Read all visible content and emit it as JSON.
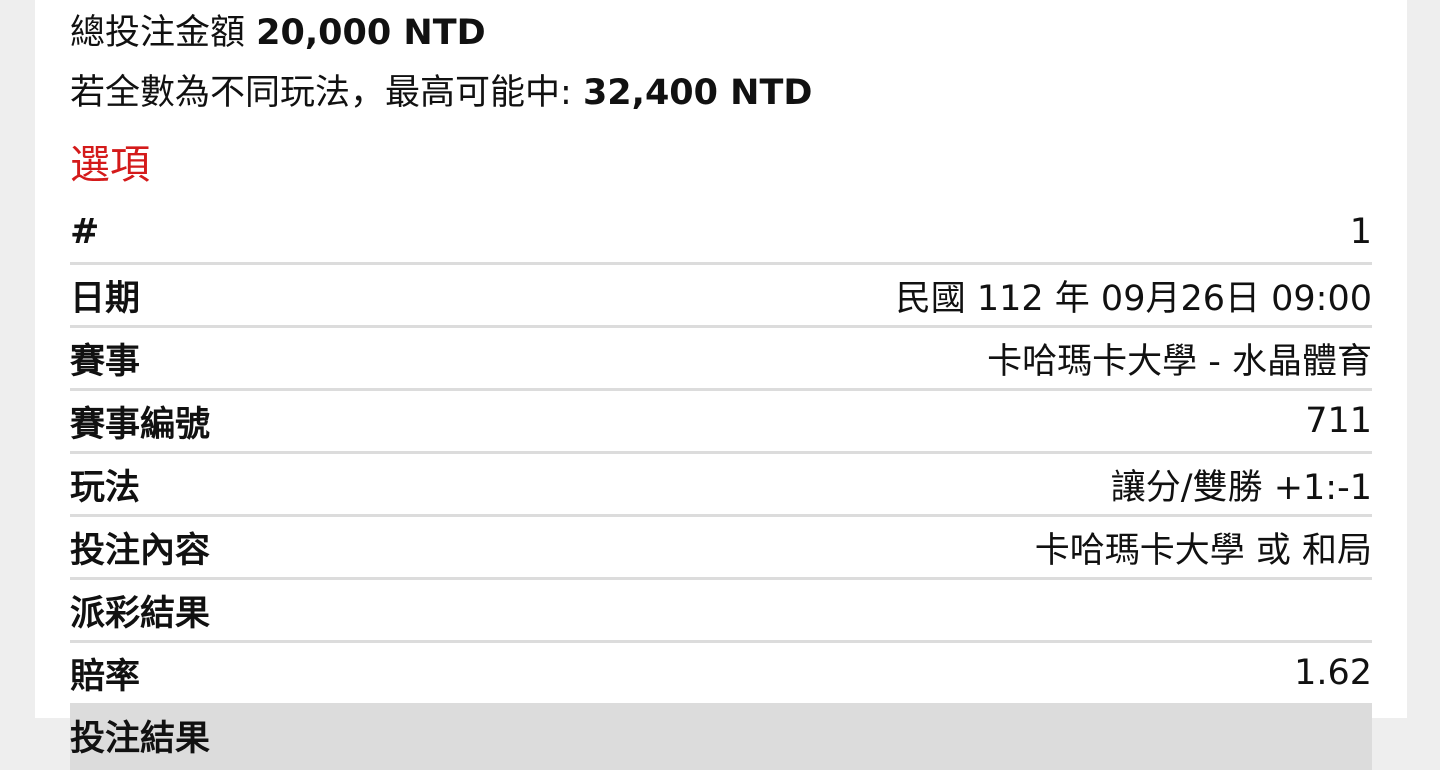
{
  "summary": {
    "total_label": "總投注金額",
    "total_value": "20,000 NTD",
    "max_label": "若全數為不同玩法，最高可能中:",
    "max_value": "32,400 NTD"
  },
  "options_title": "選項",
  "rows": [
    {
      "label": "#",
      "value": "1"
    },
    {
      "label": "日期",
      "value": "民國 112 年 09月26日 09:00"
    },
    {
      "label": "賽事",
      "value": "卡哈瑪卡大學 - 水晶體育"
    },
    {
      "label": "賽事編號",
      "value": "711"
    },
    {
      "label": "玩法",
      "value": "讓分/雙勝 +1:-1"
    },
    {
      "label": "投注內容",
      "value": "卡哈瑪卡大學 或 和局"
    },
    {
      "label": "派彩結果",
      "value": ""
    },
    {
      "label": "賠率",
      "value": "1.62"
    },
    {
      "label": "投注結果",
      "value": ""
    }
  ]
}
